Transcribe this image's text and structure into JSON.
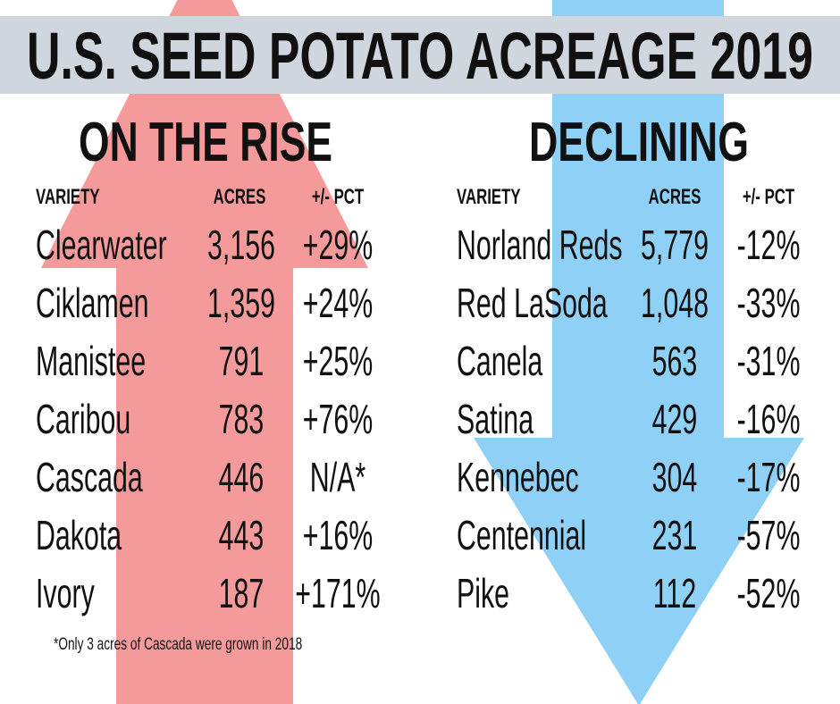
{
  "title": "U.S. SEED POTATO ACREAGE 2019",
  "rising": {
    "heading": "ON THE RISE",
    "columns": [
      "VARIETY",
      "ACRES",
      "+/- PCT"
    ],
    "rows": [
      [
        "Clearwater",
        "3,156",
        "+29%"
      ],
      [
        "Ciklamen",
        "1,359",
        "+24%"
      ],
      [
        "Manistee",
        "791",
        "+25%"
      ],
      [
        "Caribou",
        "783",
        "+76%"
      ],
      [
        "Cascada",
        "446",
        "N/A*"
      ],
      [
        "Dakota",
        "443",
        "+16%"
      ],
      [
        "Ivory",
        "187",
        "+171%"
      ]
    ]
  },
  "declining": {
    "heading": "DECLINING",
    "columns": [
      "VARIETY",
      "ACRES",
      "+/- PCT"
    ],
    "rows": [
      [
        "Norland Reds",
        "5,779",
        "-12%"
      ],
      [
        "Red LaSoda",
        "1,048",
        "-33%"
      ],
      [
        "Canela",
        "563",
        "-31%"
      ],
      [
        "Satina",
        "429",
        "-16%"
      ],
      [
        "Kennebec",
        "304",
        "-17%"
      ],
      [
        "Centennial",
        "231",
        "-57%"
      ],
      [
        "Pike",
        "112",
        "-52%"
      ]
    ]
  },
  "footnote": "*Only 3 acres of Cascada were grown in 2018"
}
